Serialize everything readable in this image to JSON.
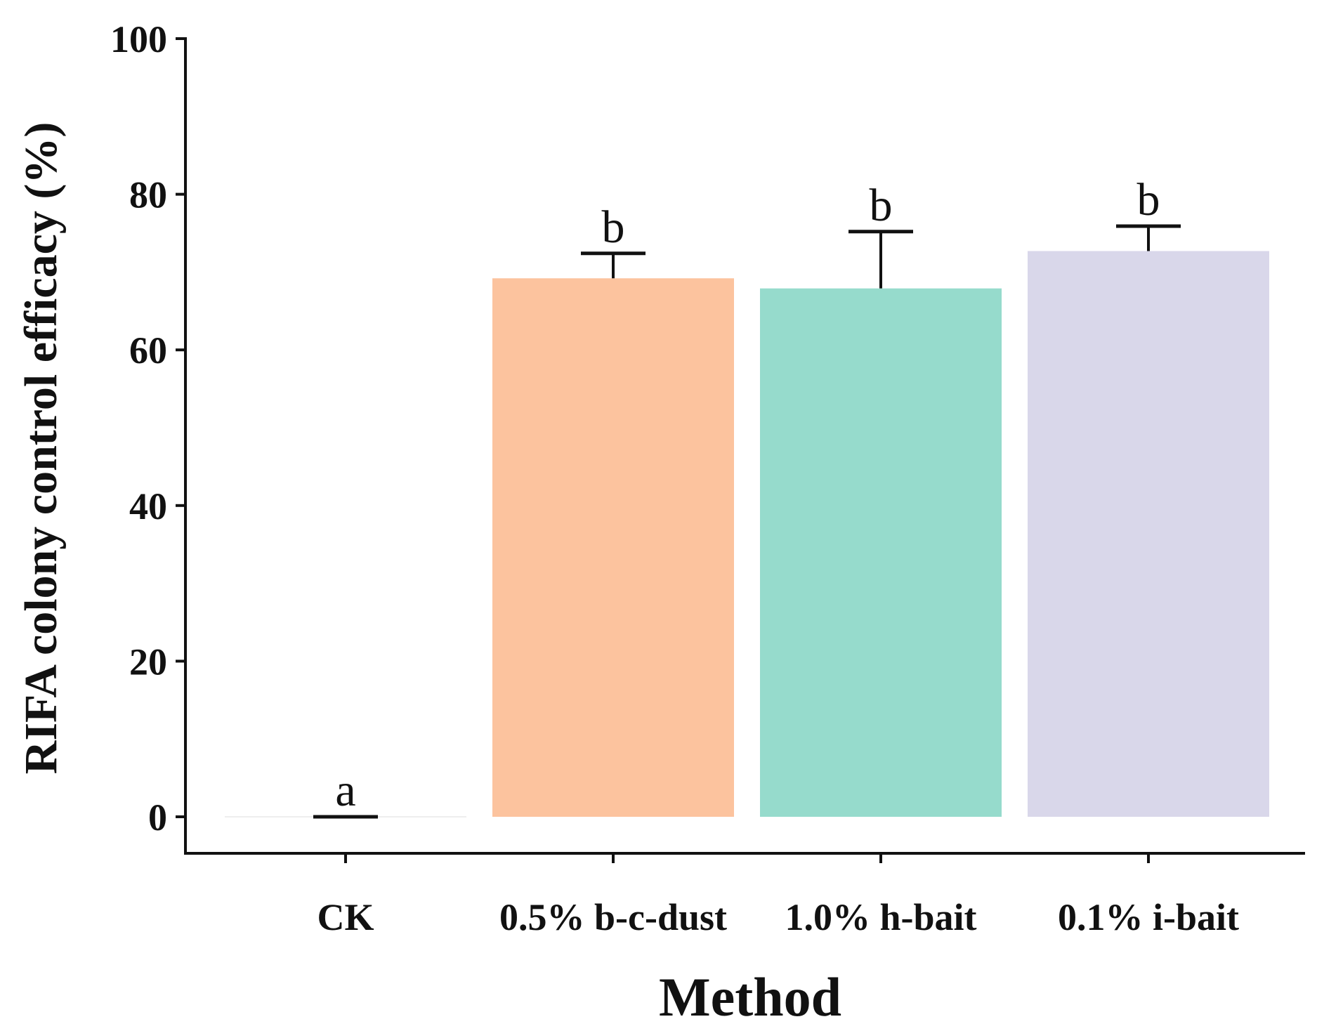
{
  "chart_data": {
    "type": "bar",
    "title": "",
    "xlabel": "Method",
    "ylabel": "RIFA colony control efficacy (%)",
    "ylim": [
      0,
      100
    ],
    "yticks": [
      0,
      20,
      40,
      60,
      80,
      100
    ],
    "ytick_labels": [
      "0",
      "20",
      "40",
      "60",
      "80",
      "100"
    ],
    "grid": false,
    "categories": [
      "CK",
      "0.5% b-c-dust",
      "1.0% h-bait",
      "0.1% i-bait"
    ],
    "values": [
      0,
      69.2,
      67.9,
      72.7
    ],
    "error": [
      0,
      3.2,
      7.3,
      3.2
    ],
    "significance_letters": [
      "a",
      "b",
      "b",
      "b"
    ],
    "colors": [
      "#ffffff",
      "#fcc39e",
      "#96dbcc",
      "#d9d7ea"
    ]
  }
}
